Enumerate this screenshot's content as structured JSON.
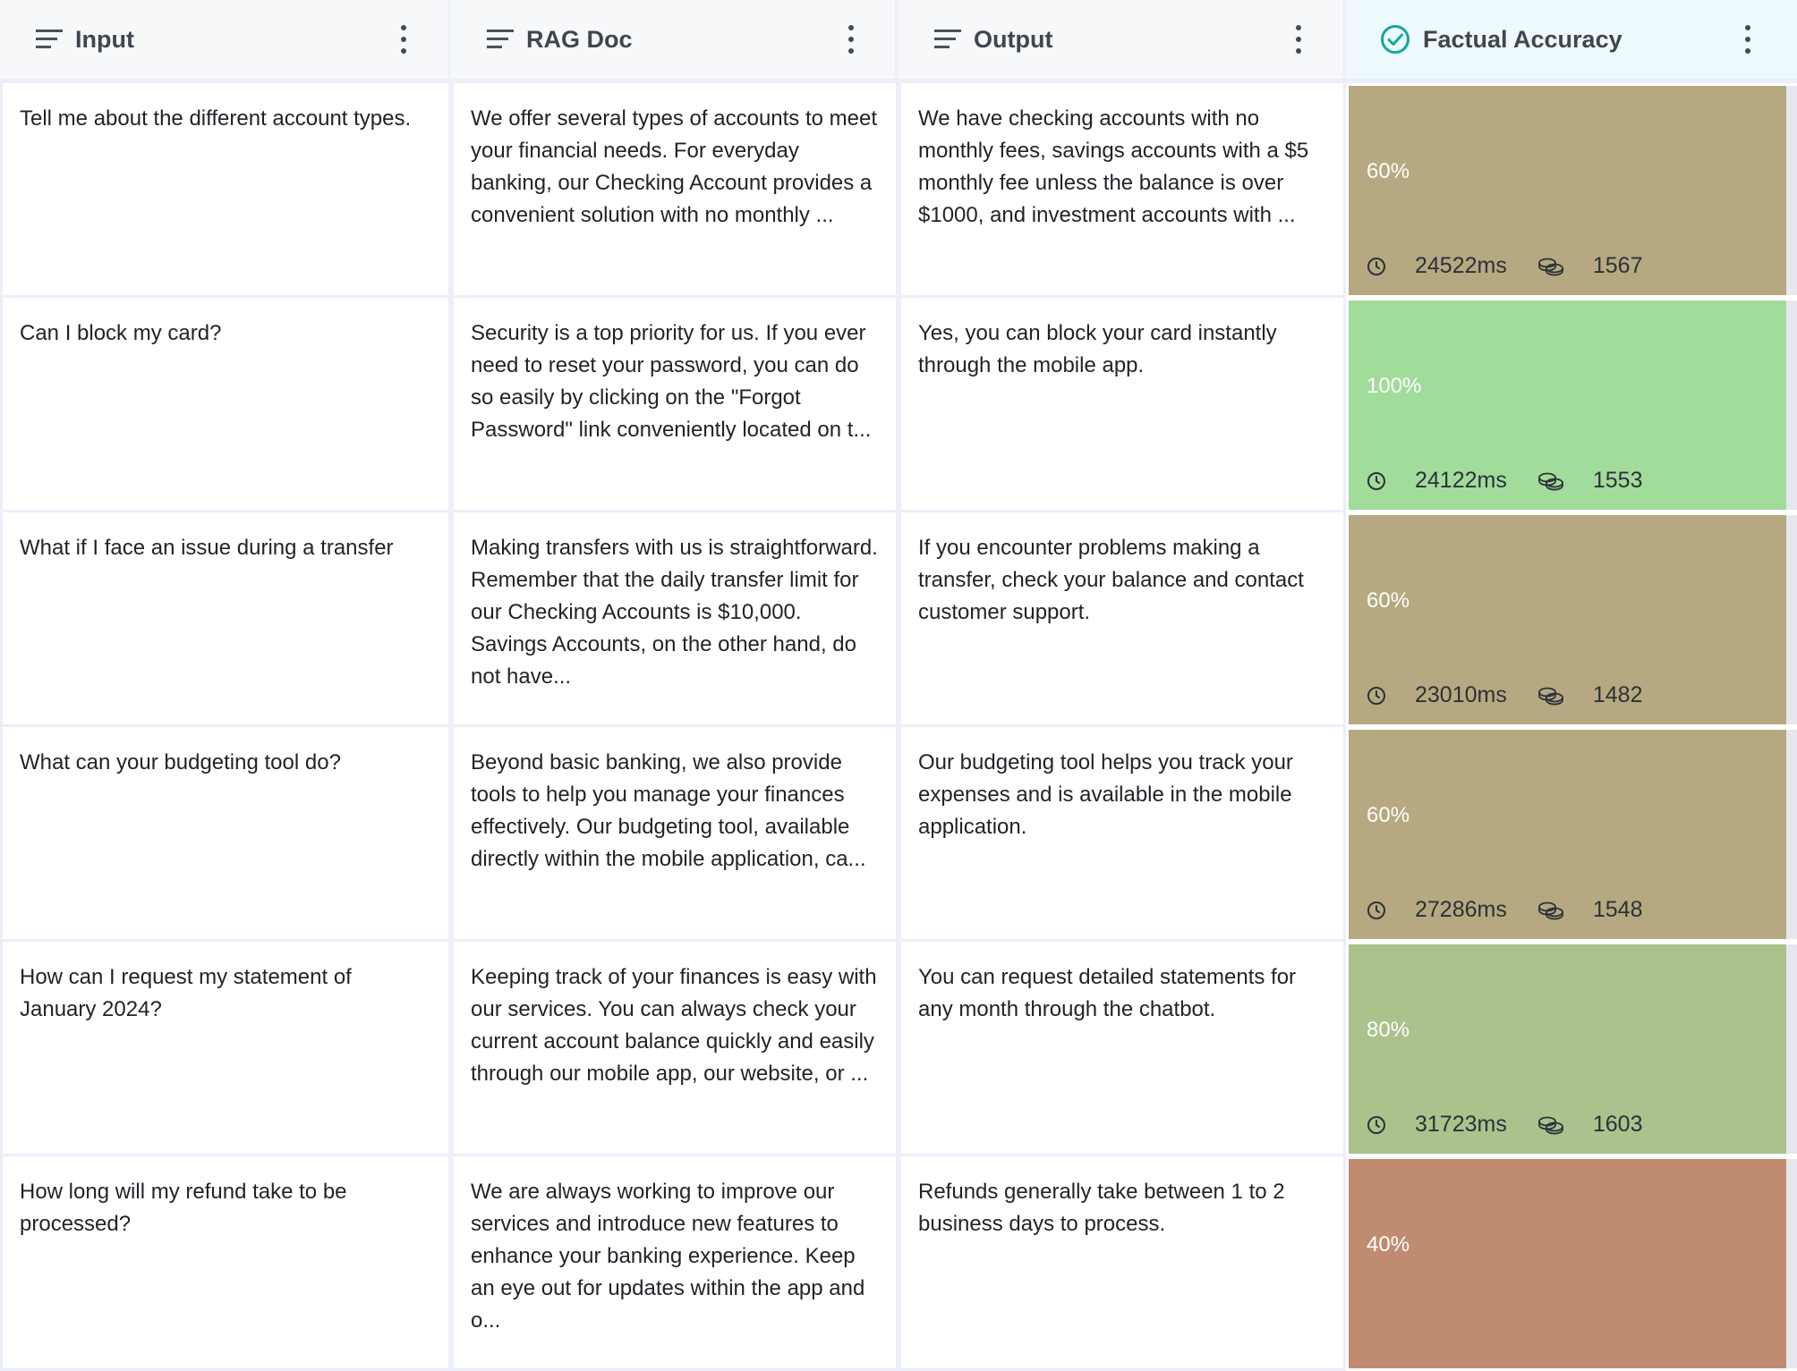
{
  "columns": [
    {
      "label": "Input",
      "icon": "sort-lines-icon"
    },
    {
      "label": "RAG Doc",
      "icon": "sort-lines-icon"
    },
    {
      "label": "Output",
      "icon": "sort-lines-icon"
    },
    {
      "label": "Factual Accuracy",
      "icon": "check-circle-icon",
      "accent": "#12a89a"
    }
  ],
  "rows": [
    {
      "input": "Tell me about the different account types.",
      "rag_doc": "We offer several types of accounts to meet your financial needs. For everyday banking, our Checking Account provides a convenient solution with no monthly ...",
      "output": "We have checking accounts with no monthly fees, savings accounts with a $5 monthly fee unless the balance is over $1000, and investment accounts with ...",
      "score": "60%",
      "score_value": 0.6,
      "time": "24522ms",
      "tokens": "1567",
      "color": "#b6a981"
    },
    {
      "input": "Can I block my card?",
      "rag_doc": "Security is a top priority for us. If you ever need to reset your password, you can do so easily by clicking on the \"Forgot Password\" link conveniently located on t...",
      "output": "Yes, you can block your card instantly through the mobile app.",
      "score": "100%",
      "score_value": 1.0,
      "time": "24122ms",
      "tokens": "1553",
      "color": "#a2dc9b"
    },
    {
      "input": "What if I face an issue during a transfer",
      "rag_doc": "Making transfers with us is straightforward. Remember that the daily transfer limit for our Checking Accounts is $10,000. Savings Accounts, on the other hand, do not have...",
      "output": "If you encounter problems making a transfer, check your balance and contact customer support.",
      "score": "60%",
      "score_value": 0.6,
      "time": "23010ms",
      "tokens": "1482",
      "color": "#b6a981"
    },
    {
      "input": "What can your budgeting tool do?",
      "rag_doc": "Beyond basic banking, we also provide tools to help you manage your finances effectively. Our budgeting tool, available directly within the mobile application, ca...",
      "output": "Our budgeting tool helps you track your expenses and is available in the mobile application.",
      "score": "60%",
      "score_value": 0.6,
      "time": "27286ms",
      "tokens": "1548",
      "color": "#b6a981"
    },
    {
      "input": "How can I request my statement of January 2024?",
      "rag_doc": "Keeping track of your finances is easy with our services. You can always check your current account balance quickly and easily through our mobile app, our website, or ...",
      "output": "You can request detailed statements for any month through the chatbot.",
      "score": "80%",
      "score_value": 0.8,
      "time": "31723ms",
      "tokens": "1603",
      "color": "#abc28d"
    },
    {
      "input": "How long will my refund take to be processed?",
      "rag_doc": "We are always working to improve our services and introduce new features to enhance your banking experience. Keep an eye out for updates within the app and o...",
      "output": "Refunds generally take between 1 to 2 business days to process.",
      "score": "40%",
      "score_value": 0.4,
      "time": "",
      "tokens": "",
      "color": "#c08c71"
    }
  ]
}
